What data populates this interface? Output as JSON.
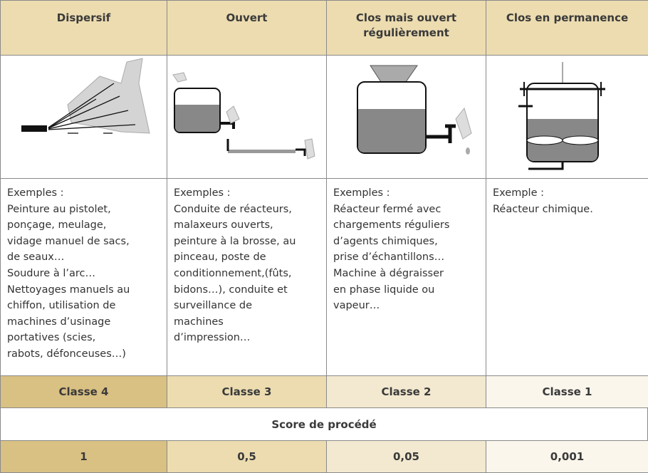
{
  "table": {
    "headers": [
      "Dispersif",
      "Ouvert",
      "Clos mais ouvert régulièrement",
      "Clos en permanence"
    ],
    "examples": [
      [
        "Exemples :",
        "Peinture au pistolet,",
        "ponçage, meulage,",
        "vidage manuel de sacs,",
        "de seaux…",
        "Soudure à l’arc…",
        "Nettoyages manuels au",
        "chiffon, utilisation de",
        "machines d’usinage",
        "portatives (scies,",
        "rabots, défonceuses…)"
      ],
      [
        "Exemples :",
        "Conduite de réacteurs,",
        "malaxeurs ouverts,",
        "peinture à la brosse, au",
        "pinceau, poste de",
        "conditionnement,(fûts,",
        "bidons…), conduite et",
        "surveillance de",
        "machines",
        "d’impression…"
      ],
      [
        "Exemples :",
        "Réacteur fermé avec",
        "chargements réguliers",
        "d’agents chimiques,",
        "prise d’échantillons…",
        "Machine à dégraisser",
        "en phase liquide ou",
        "vapeur…"
      ],
      [
        "Exemple :",
        "Réacteur chimique."
      ]
    ],
    "classes": [
      "Classe 4",
      "Classe 3",
      "Classe 2",
      "Classe 1"
    ],
    "score_label": "Score de procédé",
    "scores": [
      "1",
      "0,5",
      "0,05",
      "0,001"
    ]
  }
}
